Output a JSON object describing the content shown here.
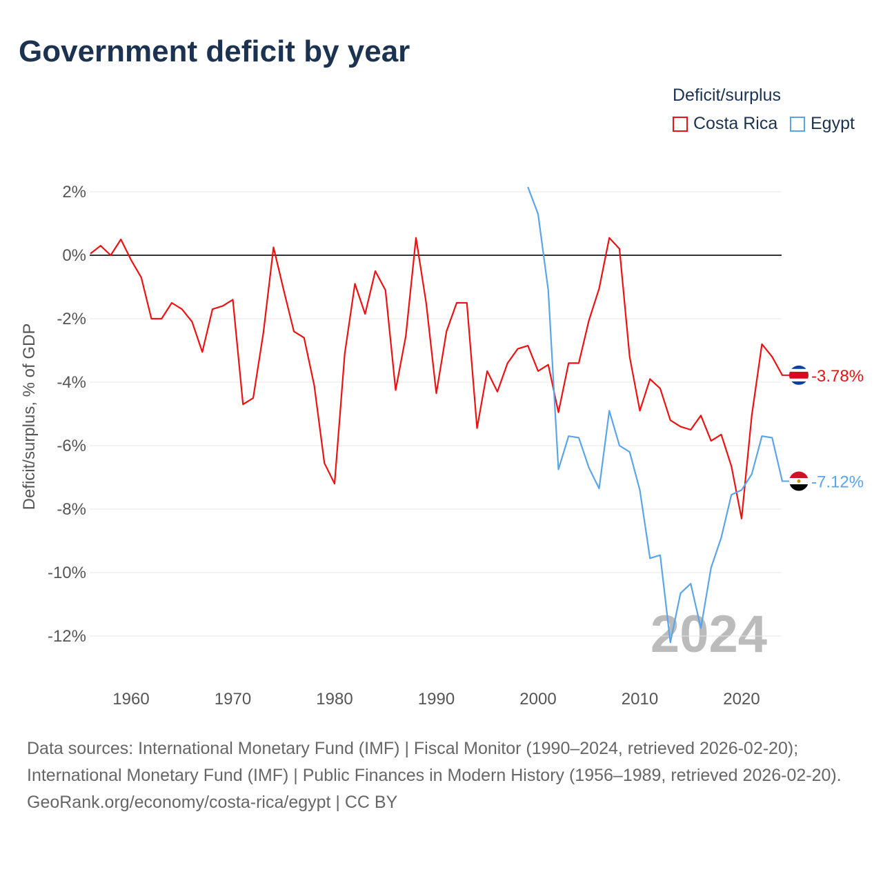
{
  "chart_data": {
    "type": "line",
    "title": "Government deficit by year",
    "ylabel": "Deficit/surplus, % of GDP",
    "xlabel": "",
    "ylim": [
      -13,
      2.2
    ],
    "xlim": [
      1956,
      2024
    ],
    "yticks": [
      2,
      0,
      -2,
      -4,
      -6,
      -8,
      -10,
      -12
    ],
    "ytick_labels": [
      "2%",
      "0%",
      "-2%",
      "-4%",
      "-6%",
      "-8%",
      "-10%",
      "-12%"
    ],
    "xticks": [
      1960,
      1970,
      1980,
      1990,
      2000,
      2010,
      2020
    ],
    "xtick_labels": [
      "1960",
      "1970",
      "1980",
      "1990",
      "2000",
      "2010",
      "2020"
    ],
    "legend_title": "Deficit/surplus",
    "legend_position": "top-right",
    "watermark_year": "2024",
    "series": [
      {
        "name": "Costa Rica",
        "color": "#ee1111",
        "end_label": "-3.78%",
        "start_year": 1956,
        "values": [
          0.05,
          0.3,
          0.0,
          0.5,
          -0.15,
          -0.7,
          -2.0,
          -2.0,
          -1.5,
          -1.7,
          -2.1,
          -3.05,
          -1.7,
          -1.6,
          -1.4,
          -4.7,
          -4.5,
          -2.45,
          0.25,
          -1.1,
          -2.4,
          -2.6,
          -4.1,
          -6.55,
          -7.2,
          -3.1,
          -0.9,
          -1.85,
          -0.5,
          -1.1,
          -4.25,
          -2.55,
          0.55,
          -1.5,
          -4.35,
          -2.4,
          -1.5,
          -1.5,
          -5.45,
          -3.65,
          -4.3,
          -3.4,
          -2.95,
          -2.85,
          -3.65,
          -3.45,
          -4.95,
          -3.4,
          -3.4,
          -2.05,
          -1.05,
          0.55,
          0.2,
          -3.2,
          -4.9,
          -3.9,
          -4.2,
          -5.2,
          -5.4,
          -5.5,
          -5.05,
          -5.85,
          -5.65,
          -6.65,
          -8.3,
          -5.05,
          -2.8,
          -3.2,
          -3.78
        ]
      },
      {
        "name": "Egypt",
        "color": "#5aa5ea",
        "end_label": "-7.12%",
        "start_year": 1999,
        "values": [
          2.15,
          1.3,
          -1.1,
          -6.75,
          -5.7,
          -5.75,
          -6.7,
          -7.35,
          -4.9,
          -6.0,
          -6.2,
          -7.4,
          -9.55,
          -9.45,
          -12.2,
          -10.65,
          -10.35,
          -11.75,
          -9.85,
          -8.9,
          -7.55,
          -7.4,
          -6.9,
          -5.7,
          -5.75,
          -7.12
        ]
      }
    ]
  },
  "sources": {
    "line1": "Data sources: International Monetary Fund (IMF) | Fiscal Monitor (1990–2024, retrieved 2026-02-20); International Monetary Fund (IMF) | Public Finances in Modern History (1956–1989, retrieved 2026-02-20).",
    "line2": "GeoRank.org/economy/costa-rica/egypt | CC BY"
  }
}
